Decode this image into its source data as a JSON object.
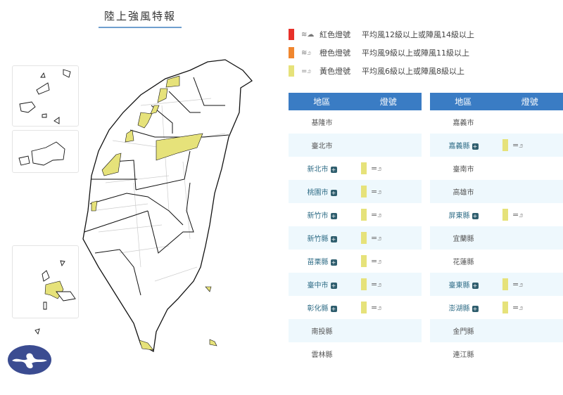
{
  "title": "陸上強風特報",
  "colors": {
    "red": "#e8312a",
    "orange": "#f0862e",
    "yellow": "#e6e27a",
    "header": "#3a7cc4",
    "alt_row": "#eef8fd"
  },
  "legend": [
    {
      "color": "#e8312a",
      "icon": "wind-cloud-icon",
      "name": "紅色燈號",
      "desc": "平均風12級以上或陣風14級以上"
    },
    {
      "color": "#f0862e",
      "icon": "strong-wind-icon",
      "name": "橙色燈號",
      "desc": "平均風9級以上或陣風11級以上"
    },
    {
      "color": "#e6e27a",
      "icon": "wind-icon",
      "name": "黃色燈號",
      "desc": "平均風6級以上或陣風8級以上"
    }
  ],
  "table_header": {
    "area": "地區",
    "signal": "燈號"
  },
  "left_table": [
    {
      "area": "基隆市",
      "link": false,
      "signal": null
    },
    {
      "area": "臺北市",
      "link": false,
      "signal": null
    },
    {
      "area": "新北市",
      "link": true,
      "signal": "yellow"
    },
    {
      "area": "桃園市",
      "link": true,
      "signal": "yellow"
    },
    {
      "area": "新竹市",
      "link": true,
      "signal": "yellow"
    },
    {
      "area": "新竹縣",
      "link": true,
      "signal": "yellow"
    },
    {
      "area": "苗栗縣",
      "link": true,
      "signal": "yellow"
    },
    {
      "area": "臺中市",
      "link": true,
      "signal": "yellow"
    },
    {
      "area": "彰化縣",
      "link": true,
      "signal": "yellow"
    },
    {
      "area": "南投縣",
      "link": false,
      "signal": null
    },
    {
      "area": "雲林縣",
      "link": false,
      "signal": null
    }
  ],
  "right_table": [
    {
      "area": "嘉義市",
      "link": false,
      "signal": null
    },
    {
      "area": "嘉義縣",
      "link": true,
      "signal": "yellow"
    },
    {
      "area": "臺南市",
      "link": false,
      "signal": null
    },
    {
      "area": "高雄市",
      "link": false,
      "signal": null
    },
    {
      "area": "屏東縣",
      "link": true,
      "signal": "yellow"
    },
    {
      "area": "宜蘭縣",
      "link": false,
      "signal": null
    },
    {
      "area": "花蓮縣",
      "link": false,
      "signal": null
    },
    {
      "area": "臺東縣",
      "link": true,
      "signal": "yellow"
    },
    {
      "area": "澎湖縣",
      "link": true,
      "signal": "yellow"
    },
    {
      "area": "金門縣",
      "link": false,
      "signal": null
    },
    {
      "area": "連江縣",
      "link": false,
      "signal": null
    }
  ]
}
